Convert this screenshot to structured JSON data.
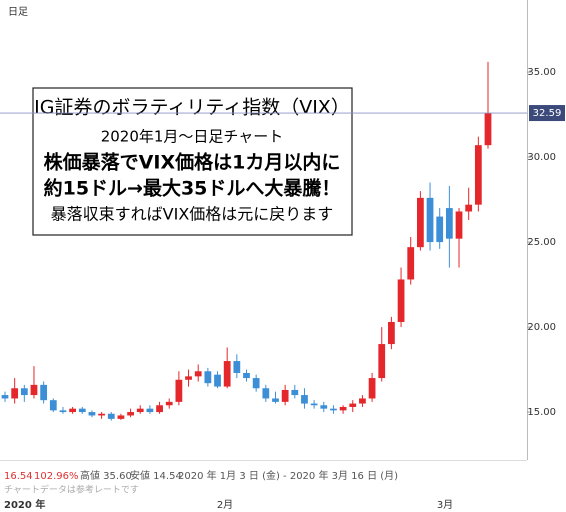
{
  "chart_data": {
    "type": "candlestick",
    "timeframe": "日足",
    "annotation": [
      "IG証券のボラティリティ指数（VIX）",
      "2020年1月～日足チャート",
      "株価暴落でVIX価格は1カ月以内に",
      "約15ドル→最大35ドルへ大暴騰！",
      "暴落収束すればVIX価格は元に戻ります"
    ],
    "x_labels": [
      "2020 年",
      "2月",
      "3月"
    ],
    "info": [
      "16.54",
      "102.96%",
      "高値 35.60",
      "安値 14.54",
      "2020 年 1月 3 日 (金) - 2020 年 3月 16 日 (月)"
    ],
    "note": "チャートデータは参考レートです",
    "up_color": "#e3272b",
    "down_color": "#3c8fd6",
    "open": [
      16.0,
      15.8,
      16.4,
      16.0,
      16.6,
      15.7,
      15.1,
      15.0,
      15.2,
      15.0,
      14.8,
      14.9,
      14.6,
      14.8,
      15.0,
      15.2,
      15.0,
      15.4,
      15.6,
      16.9,
      17.1,
      17.4,
      17.2,
      16.5,
      18.0,
      17.3,
      17.0,
      16.4,
      15.8,
      15.6,
      16.3,
      16.0,
      15.5,
      15.4,
      15.2,
      15.1,
      15.3,
      15.5,
      15.8,
      17.0,
      19.0,
      20.3,
      22.8,
      24.7,
      27.6,
      26.5,
      27.0,
      25.2,
      26.8,
      27.2,
      30.7
    ],
    "high": [
      16.2,
      17.0,
      16.6,
      17.7,
      16.8,
      15.8,
      15.3,
      15.3,
      15.3,
      15.1,
      15.0,
      15.0,
      14.9,
      15.2,
      15.4,
      15.4,
      15.6,
      15.8,
      17.4,
      17.5,
      17.8,
      17.6,
      17.4,
      18.8,
      18.4,
      17.5,
      17.2,
      16.6,
      16.2,
      16.6,
      16.6,
      16.4,
      15.7,
      15.6,
      15.4,
      15.4,
      15.7,
      16.0,
      17.3,
      20.0,
      20.6,
      23.5,
      25.3,
      28.0,
      28.5,
      27.0,
      28.3,
      27.0,
      28.2,
      31.2,
      35.6
    ],
    "low": [
      15.6,
      15.5,
      15.6,
      15.8,
      15.5,
      15.0,
      14.9,
      14.9,
      14.9,
      14.7,
      14.6,
      14.5,
      14.54,
      14.7,
      14.9,
      14.9,
      14.9,
      15.2,
      15.4,
      16.5,
      16.8,
      16.5,
      16.4,
      16.4,
      17.0,
      16.8,
      16.2,
      15.6,
      15.5,
      15.4,
      15.8,
      15.2,
      15.2,
      15.0,
      14.9,
      14.9,
      15.0,
      15.3,
      15.6,
      16.8,
      18.7,
      20.0,
      22.5,
      24.5,
      24.5,
      24.6,
      23.5,
      23.5,
      26.3,
      26.8,
      30.5
    ],
    "close": [
      15.8,
      16.4,
      16.0,
      16.6,
      15.7,
      15.1,
      15.0,
      15.2,
      15.0,
      14.8,
      14.9,
      14.6,
      14.8,
      15.0,
      15.2,
      15.0,
      15.4,
      15.6,
      16.9,
      17.1,
      17.4,
      16.7,
      16.5,
      18.0,
      17.3,
      17.0,
      16.4,
      15.8,
      15.6,
      16.3,
      16.0,
      15.5,
      15.4,
      15.2,
      15.1,
      15.3,
      15.5,
      15.8,
      17.0,
      19.0,
      20.3,
      22.8,
      24.7,
      27.6,
      25.0,
      25.0,
      25.2,
      26.8,
      27.2,
      30.7,
      32.59
    ],
    "current": 32.59,
    "ylim": [
      12.18,
      39.24
    ],
    "yticks": [
      {
        "value": 15,
        "label": "15.00"
      },
      {
        "value": 20,
        "label": "20.00"
      },
      {
        "value": 25,
        "label": "25.00"
      },
      {
        "value": 30,
        "label": "30.00"
      },
      {
        "value": 35,
        "label": "35.00"
      }
    ]
  }
}
